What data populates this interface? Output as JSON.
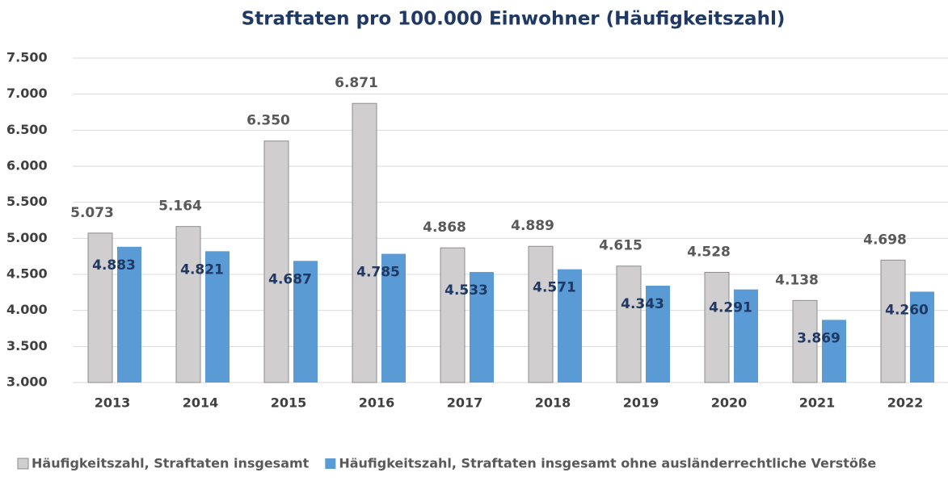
{
  "chart_data": {
    "type": "bar",
    "title": "Straftaten pro 100.000 Einwohner (Häufigkeitszahl)",
    "categories": [
      "2013",
      "2014",
      "2015",
      "2016",
      "2017",
      "2018",
      "2019",
      "2020",
      "2021",
      "2022"
    ],
    "series": [
      {
        "name": "Häufigkeitszahl, Straftaten insgesamt",
        "color": "#d0cece",
        "values": [
          5073,
          5164,
          6350,
          6871,
          4868,
          4889,
          4615,
          4528,
          4138,
          4698
        ],
        "value_labels": [
          "5.073",
          "5.164",
          "6.350",
          "6.871",
          "4.868",
          "4.889",
          "4.615",
          "4.528",
          "4.138",
          "4.698"
        ]
      },
      {
        "name": "Häufigkeitszahl, Straftaten insgesamt ohne ausländerrechtliche Verstöße",
        "color": "#5b9bd5",
        "values": [
          4883,
          4821,
          4687,
          4785,
          4533,
          4571,
          4343,
          4291,
          3869,
          4260
        ],
        "value_labels": [
          "4.883",
          "4.821",
          "4.687",
          "4.785",
          "4.533",
          "4.571",
          "4.343",
          "4.291",
          "3.869",
          "4.260"
        ]
      }
    ],
    "ylim": [
      3000,
      7500
    ],
    "yticks": [
      {
        "value": 3000,
        "label": "3.000"
      },
      {
        "value": 3500,
        "label": "3.500"
      },
      {
        "value": 4000,
        "label": "4.000"
      },
      {
        "value": 4500,
        "label": "4.500"
      },
      {
        "value": 5000,
        "label": "5.000"
      },
      {
        "value": 5500,
        "label": "5.500"
      },
      {
        "value": 6000,
        "label": "6.000"
      },
      {
        "value": 6500,
        "label": "6.500"
      },
      {
        "value": 7000,
        "label": "7.000"
      },
      {
        "value": 7500,
        "label": "7.500"
      }
    ],
    "grid": true,
    "legend": "bottom"
  }
}
